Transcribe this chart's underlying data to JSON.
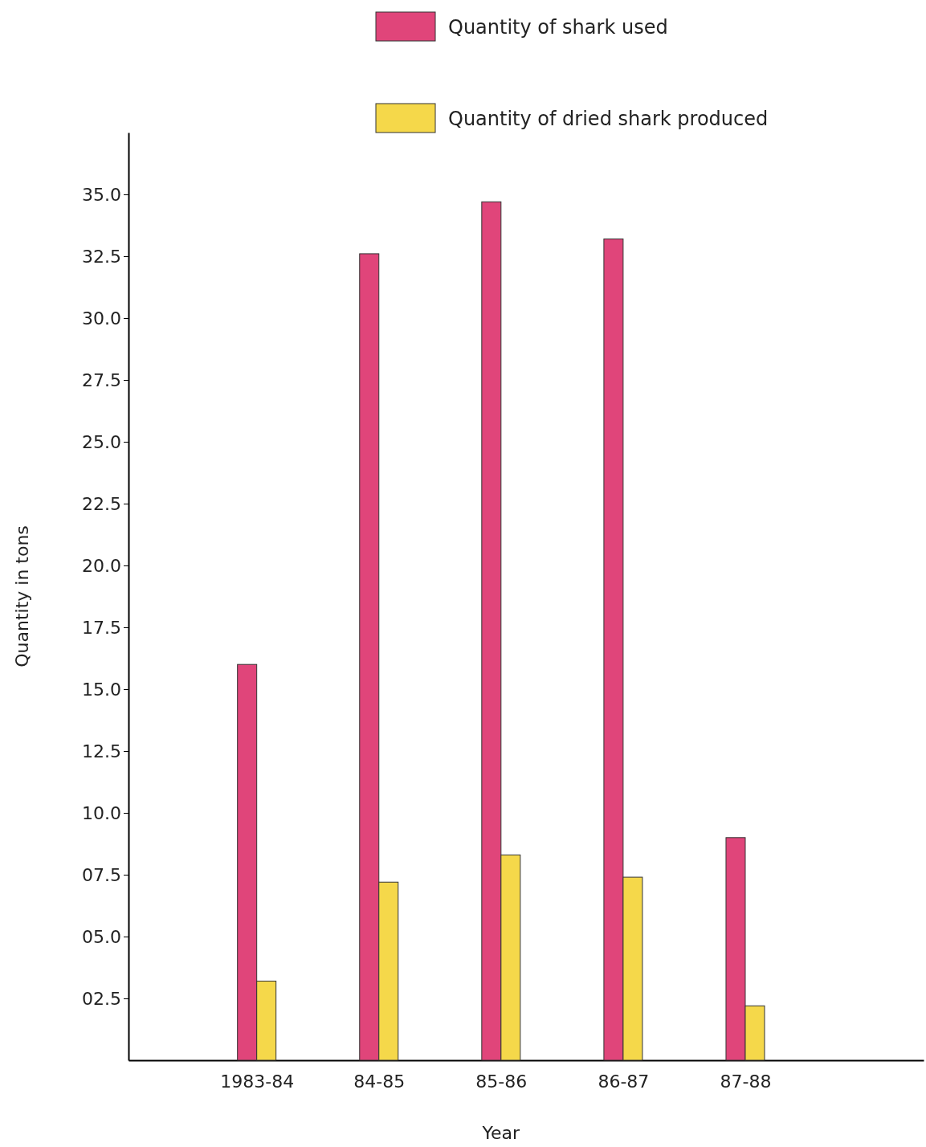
{
  "chart_data": {
    "type": "bar",
    "xlabel": "Year",
    "ylabel": "Quantity in tons",
    "categories": [
      "1983-84",
      "84-85",
      "85-86",
      "86-87",
      "87-88"
    ],
    "series": [
      {
        "name": "Quantity of shark used",
        "color": "#e0457a",
        "values": [
          16.0,
          32.6,
          34.7,
          33.2,
          9.0
        ]
      },
      {
        "name": "Quantity of dried shark produced",
        "color": "#f5d84a",
        "values": [
          3.2,
          7.2,
          8.3,
          7.4,
          2.2
        ]
      }
    ],
    "ylim": [
      0,
      37.5
    ],
    "yticks": [
      {
        "value": 2.5,
        "label": "02.5"
      },
      {
        "value": 5,
        "label": "05.0"
      },
      {
        "value": 7.5,
        "label": "07.5"
      },
      {
        "value": 10,
        "label": "10.0"
      },
      {
        "value": 12.5,
        "label": "12.5"
      },
      {
        "value": 15,
        "label": "15.0"
      },
      {
        "value": 17.5,
        "label": "17.5"
      },
      {
        "value": 20,
        "label": "20.0"
      },
      {
        "value": 22.5,
        "label": "22.5"
      },
      {
        "value": 25,
        "label": "25.0"
      },
      {
        "value": 27.5,
        "label": "27.5"
      },
      {
        "value": 30,
        "label": "30.0"
      },
      {
        "value": 32.5,
        "label": "32.5"
      },
      {
        "value": 35,
        "label": "35.0"
      }
    ],
    "legend": "top right",
    "grid": false
  }
}
